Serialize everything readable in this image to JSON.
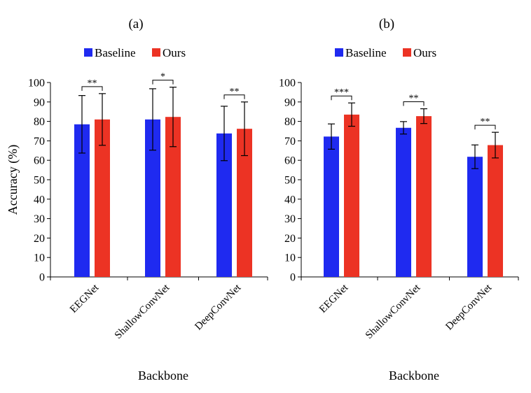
{
  "colors": {
    "baseline": "#1f2af0",
    "ours": "#ec3324",
    "axis": "#000000"
  },
  "chart_data": [
    {
      "type": "bar",
      "panel_label": "(a)",
      "categories": [
        "EEGNet",
        "ShallowConvNet",
        "DeepConvNet"
      ],
      "series": [
        {
          "name": "Baseline",
          "values": [
            78.5,
            81.0,
            73.8
          ],
          "errors": [
            14.8,
            15.8,
            14.0
          ]
        },
        {
          "name": "Ours",
          "values": [
            81.0,
            82.3,
            76.2
          ],
          "errors": [
            13.3,
            15.3,
            13.8
          ]
        }
      ],
      "significance": [
        "**",
        "*",
        "**"
      ],
      "ylabel": "Accuracy (%)",
      "xlabel": "Backbone",
      "ylim": [
        0,
        100
      ],
      "yticks": [
        0,
        10,
        20,
        30,
        40,
        50,
        60,
        70,
        80,
        90,
        100
      ],
      "legend_position": "top",
      "grid": false
    },
    {
      "type": "bar",
      "panel_label": "(b)",
      "categories": [
        "EEGNet",
        "ShallowConvNet",
        "DeepConvNet"
      ],
      "series": [
        {
          "name": "Baseline",
          "values": [
            72.2,
            76.7,
            61.8
          ],
          "errors": [
            6.5,
            3.2,
            6.1
          ]
        },
        {
          "name": "Ours",
          "values": [
            83.5,
            82.7,
            67.8
          ],
          "errors": [
            6.0,
            3.8,
            6.6
          ]
        }
      ],
      "significance": [
        "***",
        "**",
        "**"
      ],
      "ylabel": "",
      "xlabel": "Backbone",
      "ylim": [
        0,
        100
      ],
      "yticks": [
        0,
        10,
        20,
        30,
        40,
        50,
        60,
        70,
        80,
        90,
        100
      ],
      "legend_position": "top",
      "grid": false
    }
  ]
}
